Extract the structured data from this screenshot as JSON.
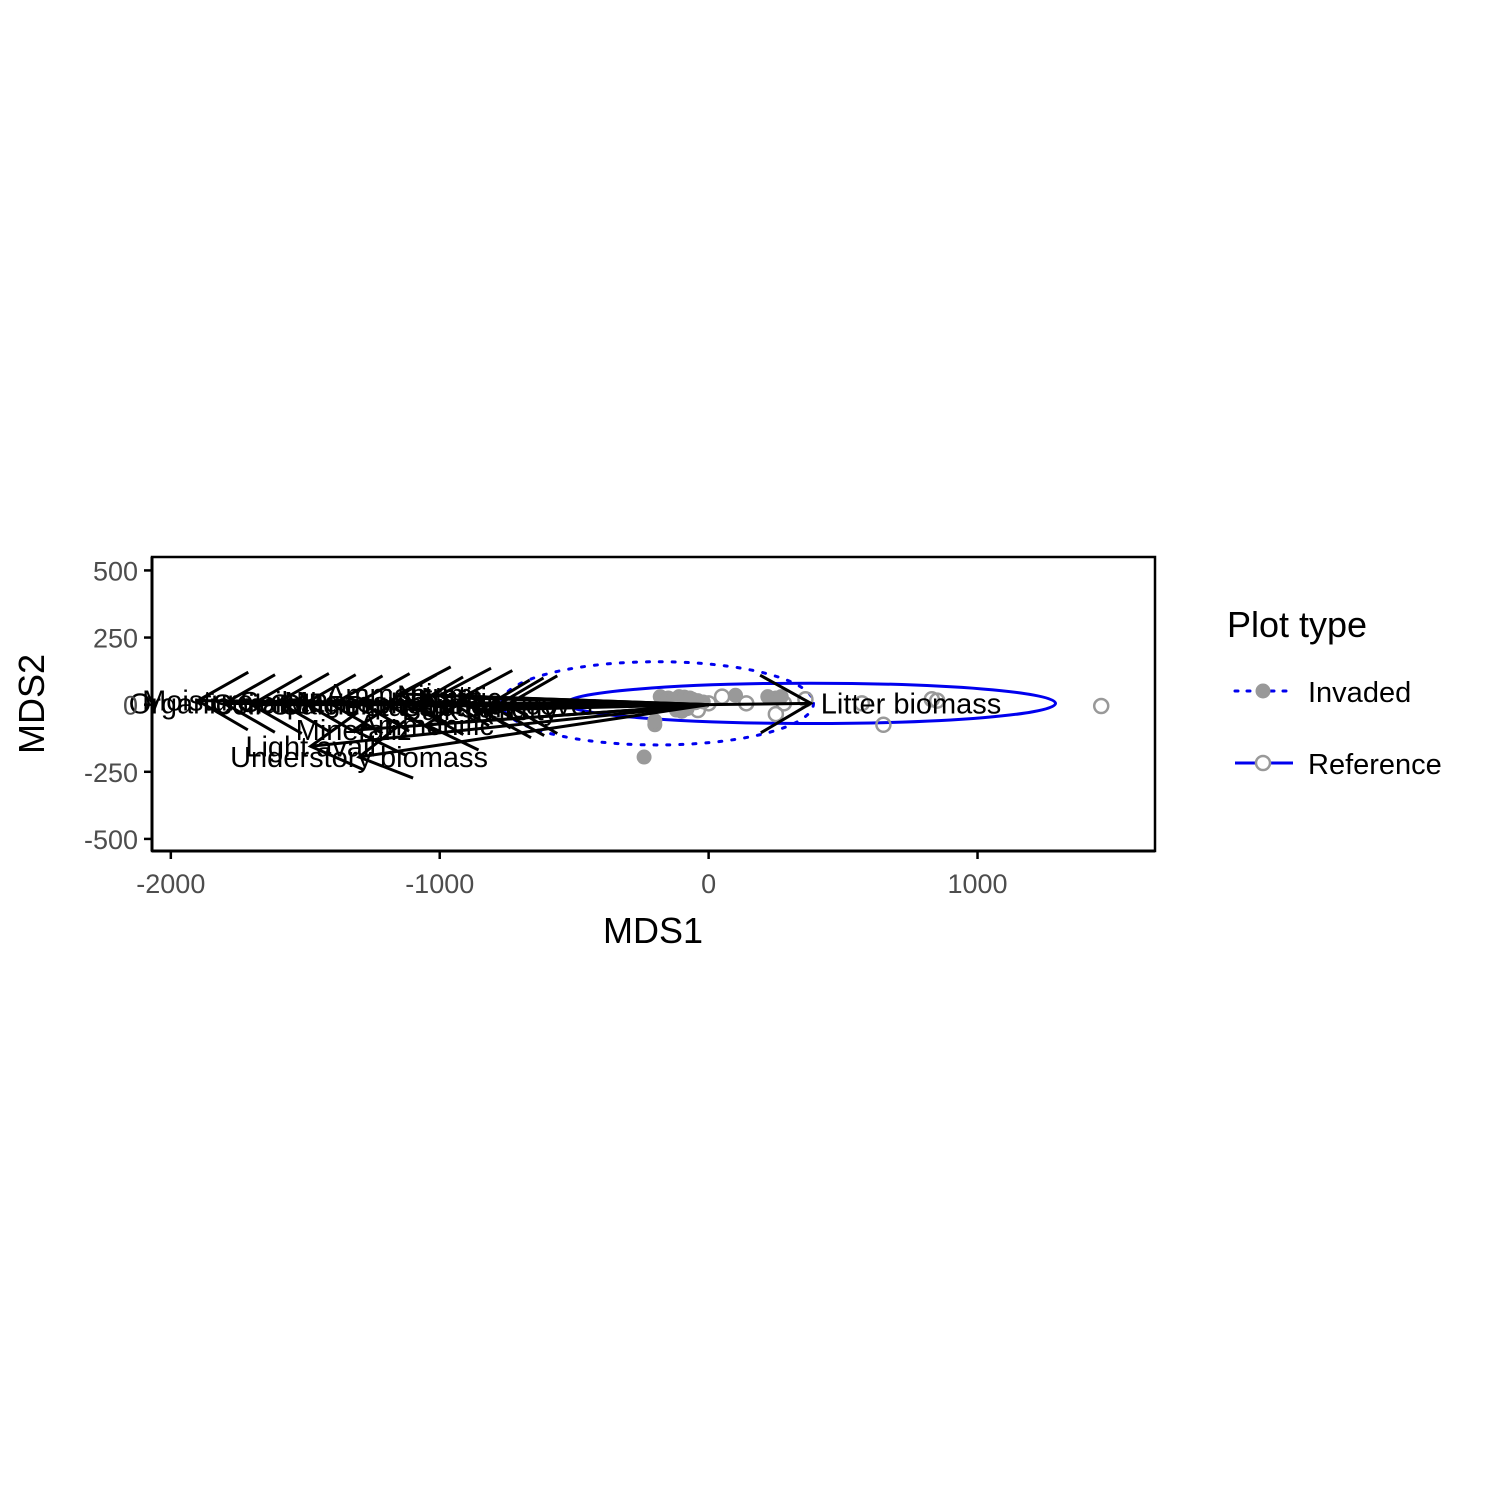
{
  "chart_data": {
    "type": "scatter",
    "xlabel": "MDS1",
    "ylabel": "MDS2",
    "xlim": [
      -2070,
      1660
    ],
    "ylim": [
      -545,
      550
    ],
    "x_ticks": [
      -2000,
      -1000,
      0,
      1000
    ],
    "y_ticks": [
      -500,
      -250,
      0,
      250,
      500
    ],
    "grid": false,
    "legend": {
      "title": "Plot type",
      "placement": "right",
      "entries": [
        {
          "label": "Invaded",
          "marker": "filled-circle",
          "line": "dotted"
        },
        {
          "label": "Reference",
          "marker": "open-circle",
          "line": "solid"
        }
      ]
    },
    "colors": {
      "points": "#999999",
      "ellipse": "#0000ee",
      "vectors": "#000000"
    },
    "series": [
      {
        "name": "Invaded",
        "x": [
          -240,
          -200,
          -200,
          -180,
          -150,
          -130,
          -110,
          -90,
          -70,
          -60,
          -40,
          -20,
          100,
          220,
          250,
          270,
          -120,
          -100,
          -80
        ],
        "y": [
          -195,
          -75,
          -60,
          30,
          25,
          20,
          30,
          28,
          25,
          20,
          15,
          10,
          35,
          30,
          25,
          30,
          -20,
          -25,
          -15
        ],
        "ellipse": {
          "cx": -190,
          "cy": 5,
          "rx": 580,
          "ry": 155,
          "line": "dotted"
        }
      },
      {
        "name": "Reference",
        "x": [
          1460,
          650,
          830,
          570,
          250,
          140,
          0,
          -50,
          -100,
          360,
          50,
          850,
          280,
          -40
        ],
        "y": [
          -5,
          -75,
          20,
          5,
          -35,
          5,
          5,
          10,
          -10,
          20,
          30,
          15,
          5,
          -20
        ],
        "ellipse": {
          "cx": 380,
          "cy": 5,
          "rx": 910,
          "ry": 75,
          "line": "solid"
        }
      }
    ],
    "vectors": [
      {
        "label": "Litter biomass",
        "x": 380,
        "y": 5
      },
      {
        "label": "Understory biomass",
        "x": -1300,
        "y": -195
      },
      {
        "label": "Light avail",
        "x": -1480,
        "y": -155
      },
      {
        "label": "Mineraliz",
        "x": -1320,
        "y": -95
      },
      {
        "label": "Ammonific",
        "x": -1050,
        "y": -75
      },
      {
        "label": "Ammonium",
        "x": -1150,
        "y": 40
      },
      {
        "label": "Nitrate",
        "x": -1000,
        "y": 35
      },
      {
        "label": "Nitrific",
        "x": -920,
        "y": 25
      },
      {
        "label": "Moisture",
        "x": -1900,
        "y": 15
      },
      {
        "label": "Organic matter",
        "x": -1800,
        "y": 5
      },
      {
        "label": "Soil C",
        "x": -1700,
        "y": 0
      },
      {
        "label": "Soil N",
        "x": -1600,
        "y": 10
      },
      {
        "label": "pH",
        "x": -1500,
        "y": 5
      },
      {
        "label": "Calcium",
        "x": -1400,
        "y": 0
      },
      {
        "label": "Magnesium",
        "x": -1300,
        "y": 10
      },
      {
        "label": "Phosphorus",
        "x": -1200,
        "y": 5
      },
      {
        "label": "Potassium",
        "x": -1100,
        "y": -5
      },
      {
        "label": "Sand",
        "x": -800,
        "y": -10
      },
      {
        "label": "Bulk density",
        "x": -850,
        "y": -20
      },
      {
        "label": "Canopy cover",
        "x": -750,
        "y": 0
      }
    ]
  }
}
